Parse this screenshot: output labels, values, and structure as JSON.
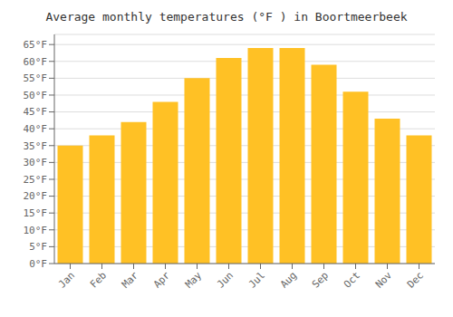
{
  "chart_data": {
    "type": "bar",
    "title": "Average monthly temperatures (°F ) in Boortmeerbeek",
    "categories": [
      "Jan",
      "Feb",
      "Mar",
      "Apr",
      "May",
      "Jun",
      "Jul",
      "Aug",
      "Sep",
      "Oct",
      "Nov",
      "Dec"
    ],
    "values": [
      35,
      38,
      42,
      48,
      55,
      61,
      64,
      64,
      59,
      51,
      43,
      38
    ],
    "color": "#FFC125",
    "ylim": [
      0,
      68
    ],
    "yticks": [
      {
        "value": 0,
        "label": "0°F"
      },
      {
        "value": 5,
        "label": "5°F"
      },
      {
        "value": 10,
        "label": "10°F"
      },
      {
        "value": 15,
        "label": "15°F"
      },
      {
        "value": 20,
        "label": "20°F"
      },
      {
        "value": 25,
        "label": "25°F"
      },
      {
        "value": 30,
        "label": "30°F"
      },
      {
        "value": 35,
        "label": "35°F"
      },
      {
        "value": 40,
        "label": "40°F"
      },
      {
        "value": 45,
        "label": "45°F"
      },
      {
        "value": 50,
        "label": "50°F"
      },
      {
        "value": 55,
        "label": "55°F"
      },
      {
        "value": 60,
        "label": "60°F"
      },
      {
        "value": 65,
        "label": "65°F"
      }
    ],
    "grid": true
  }
}
